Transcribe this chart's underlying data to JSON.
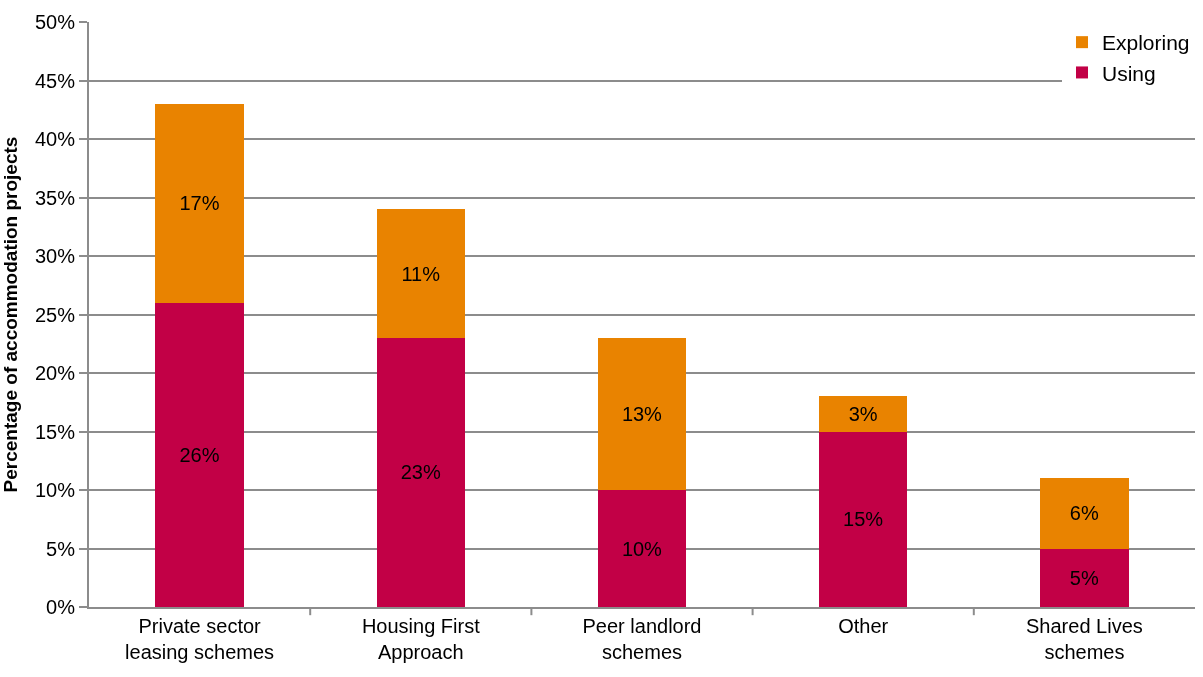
{
  "chart_data": {
    "type": "bar",
    "ylabel": "Percentage of accommodation projects",
    "categories": [
      "Private sector leasing schemes",
      "Housing First Approach",
      "Peer landlord schemes",
      "Other",
      "Shared Lives schemes"
    ],
    "series": [
      {
        "name": "Using",
        "color": "#c20046",
        "values": [
          26,
          23,
          10,
          15,
          5
        ],
        "value_labels": [
          "26%",
          "23%",
          "10%",
          "15%",
          "5%"
        ]
      },
      {
        "name": "Exploring",
        "color": "#e98300",
        "values": [
          17,
          11,
          13,
          3,
          6
        ],
        "value_labels": [
          "17%",
          "11%",
          "13%",
          "3%",
          "6%"
        ]
      }
    ],
    "stacked": true,
    "ylim": [
      0,
      50
    ],
    "yticks": [
      {
        "value": 0,
        "label": "0%"
      },
      {
        "value": 5,
        "label": "5%"
      },
      {
        "value": 10,
        "label": "10%"
      },
      {
        "value": 15,
        "label": "15%"
      },
      {
        "value": 20,
        "label": "20%"
      },
      {
        "value": 25,
        "label": "25%"
      },
      {
        "value": 30,
        "label": "30%"
      },
      {
        "value": 35,
        "label": "35%"
      },
      {
        "value": 40,
        "label": "40%"
      },
      {
        "value": 45,
        "label": "45%"
      },
      {
        "value": 50,
        "label": "50%"
      }
    ],
    "grid": "y",
    "legend": "top right"
  }
}
